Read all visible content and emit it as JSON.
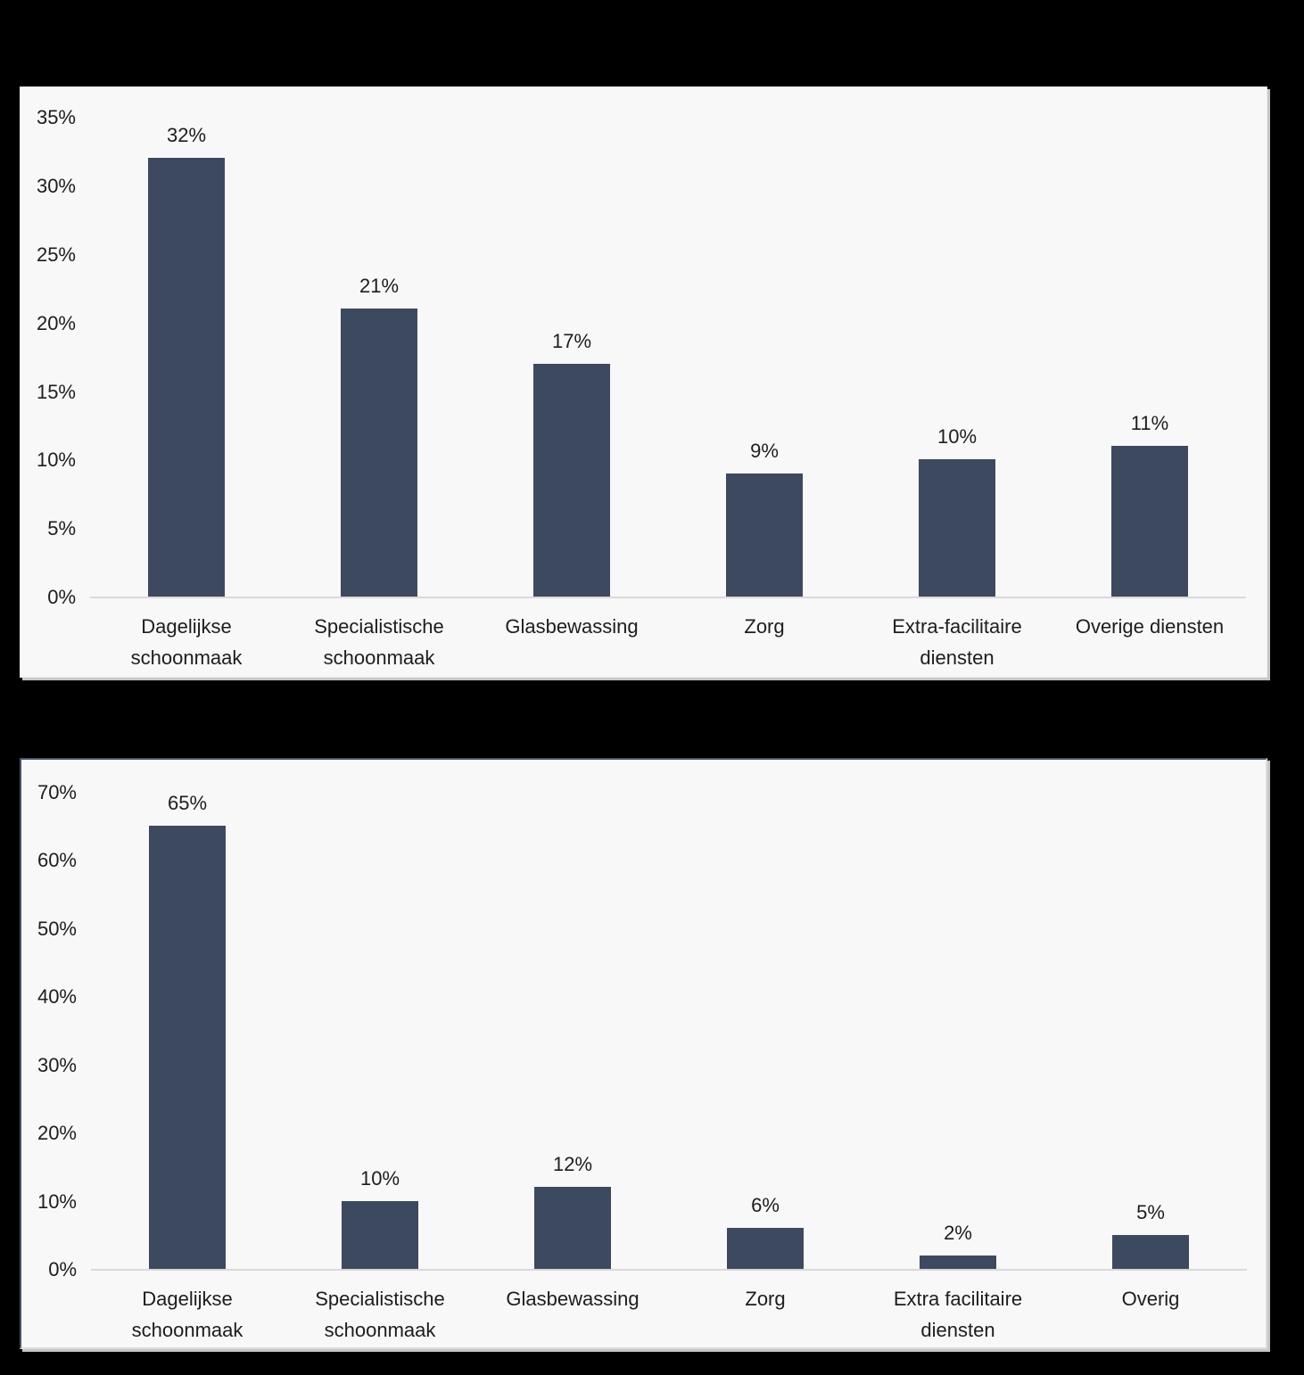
{
  "page": {
    "background_color": "#000000",
    "panel_background": "#f8f8f8",
    "bar_color": "#3d495e",
    "text_color": "#1d1d1d",
    "axis_line_color": "#d9d9d9"
  },
  "chart_data": [
    {
      "type": "bar",
      "title": "",
      "categories": [
        "Dagelijkse schoonmaak",
        "Specialistische schoonmaak",
        "Glasbewassing",
        "Zorg",
        "Extra-facilitaire diensten",
        "Overige diensten"
      ],
      "values": [
        32,
        21,
        17,
        9,
        10,
        11
      ],
      "value_labels": [
        "32%",
        "21%",
        "17%",
        "9%",
        "10%",
        "11%"
      ],
      "yticks": [
        0,
        5,
        10,
        15,
        20,
        25,
        30,
        35
      ],
      "ytick_labels": [
        "0%",
        "5%",
        "10%",
        "15%",
        "20%",
        "25%",
        "30%",
        "35%"
      ],
      "ylim": [
        0,
        35
      ],
      "xlabel": "",
      "ylabel": "",
      "grid": false,
      "legend": "none",
      "bar_color": "#3d495e"
    },
    {
      "type": "bar",
      "title": "",
      "categories": [
        "Dagelijkse schoonmaak",
        "Specialistische schoonmaak",
        "Glasbewassing",
        "Zorg",
        "Extra facilitaire diensten",
        "Overig"
      ],
      "values": [
        65,
        10,
        12,
        6,
        2,
        5
      ],
      "value_labels": [
        "65%",
        "10%",
        "12%",
        "6%",
        "2%",
        "5%"
      ],
      "yticks": [
        0,
        10,
        20,
        30,
        40,
        50,
        60,
        70
      ],
      "ytick_labels": [
        "0%",
        "10%",
        "20%",
        "30%",
        "40%",
        "50%",
        "60%",
        "70%"
      ],
      "ylim": [
        0,
        70
      ],
      "xlabel": "",
      "ylabel": "",
      "grid": false,
      "legend": "none",
      "bar_color": "#3d495e"
    }
  ]
}
